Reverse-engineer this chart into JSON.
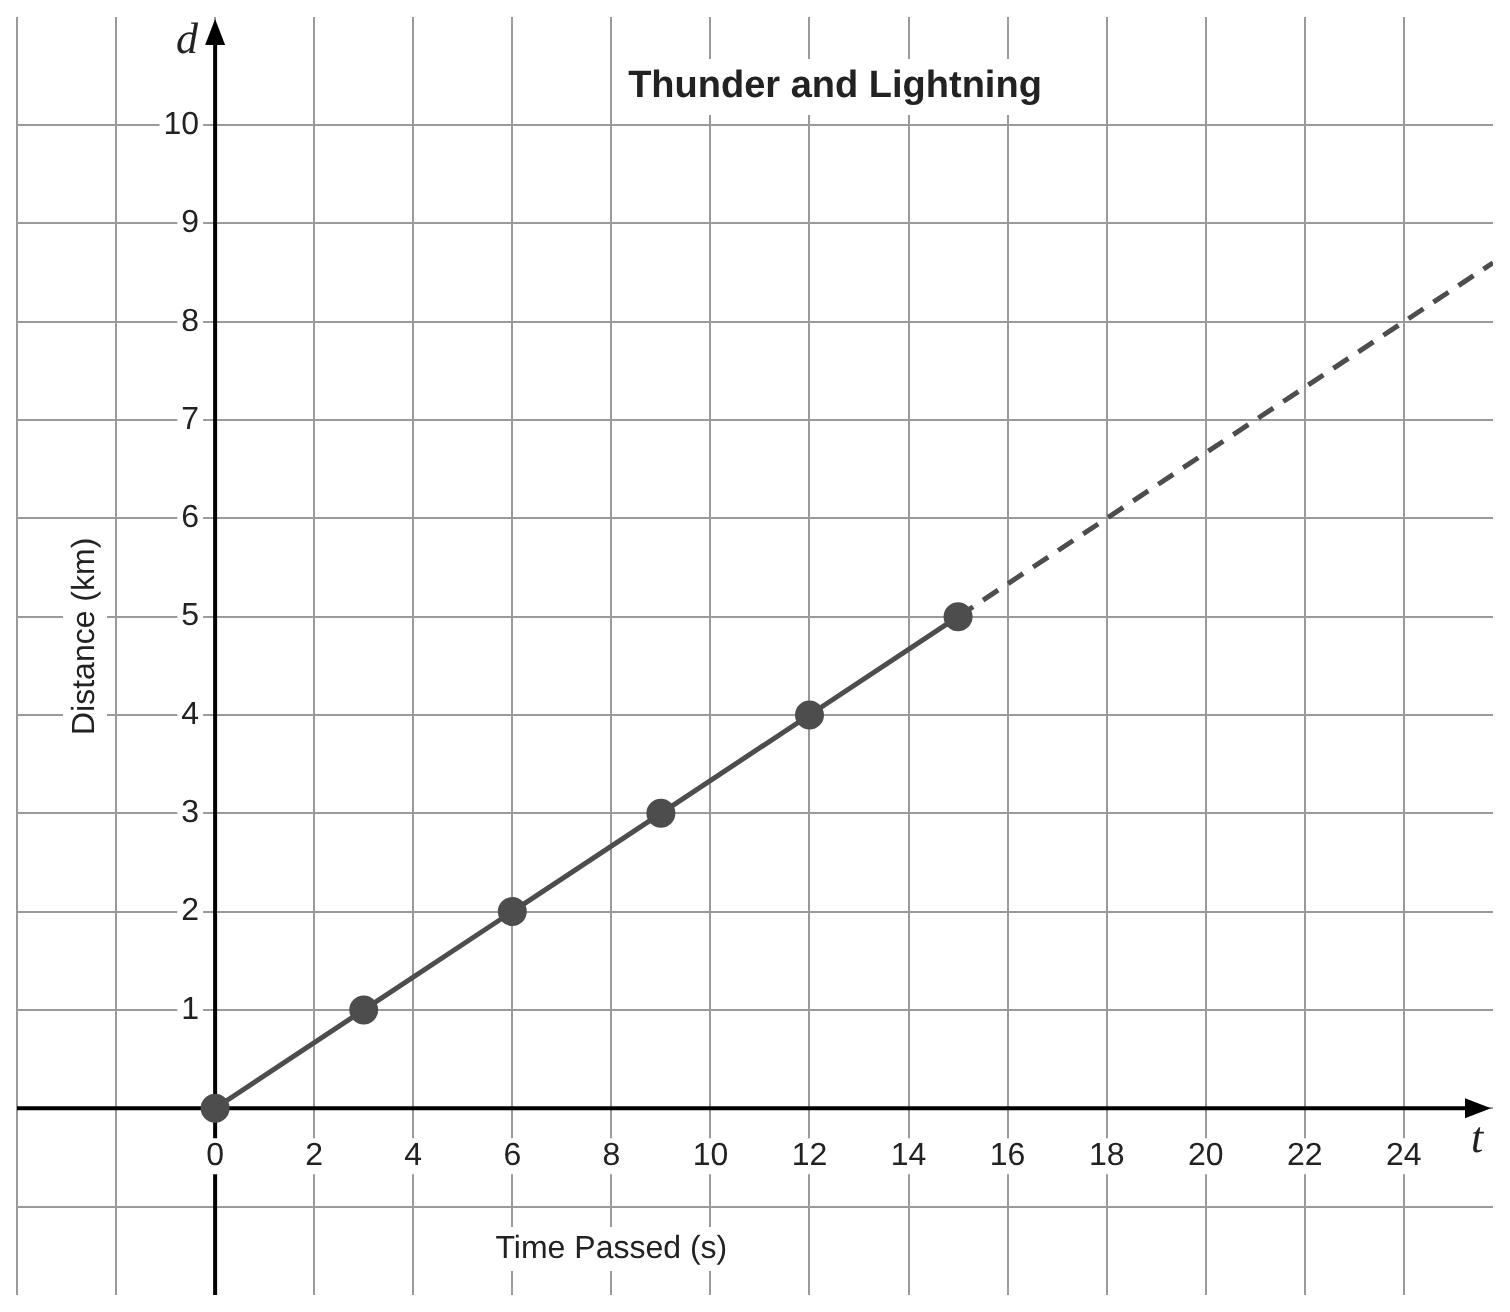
{
  "chart_data": {
    "type": "line",
    "title": "Thunder and Lightning",
    "xlabel": "Time Passed (s)",
    "ylabel": "Distance (km)",
    "xlim": [
      -4,
      25.8
    ],
    "ylim": [
      -1.9,
      11.1
    ],
    "xticks": [
      {
        "value": -4,
        "label": null
      },
      {
        "value": -2,
        "label": null
      },
      0,
      2,
      4,
      6,
      8,
      10,
      12,
      14,
      16,
      18,
      20,
      22,
      24
    ],
    "yticks": [
      {
        "value": -1,
        "label": null
      },
      {
        "value": 0,
        "label": null
      },
      1,
      2,
      3,
      4,
      5,
      6,
      7,
      8,
      9,
      10
    ],
    "grid": true,
    "legend": false,
    "series": [
      {
        "x": [
          0,
          3,
          6,
          9,
          12,
          15
        ],
        "values": [
          0,
          1,
          2,
          3,
          4,
          5
        ],
        "color": "#4d4d4d",
        "marker": "circle",
        "line_style": "solid"
      },
      {
        "x": [
          15,
          25.8
        ],
        "values": [
          5,
          8.6
        ],
        "color": "#4d4d4d",
        "marker": "none",
        "line_style": "dashed"
      }
    ],
    "annotations": [
      "d",
      "t"
    ]
  }
}
